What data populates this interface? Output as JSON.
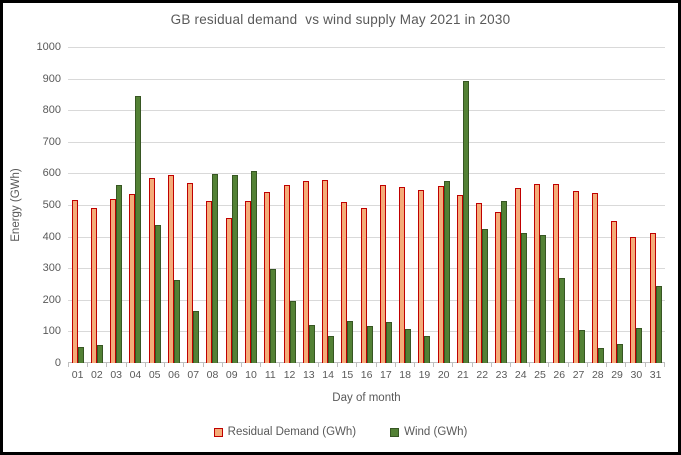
{
  "chart_data": {
    "type": "bar",
    "title": "GB residual demand  vs wind supply May 2021 in 2030",
    "xlabel": "Day of month",
    "ylabel": "Energy (GWh)",
    "ylim": [
      0,
      1000
    ],
    "ytick_interval": 100,
    "grid": true,
    "legend_position": "bottom",
    "colors": {
      "residual_fill": "#F4AC79",
      "residual_border": "#C00000",
      "wind_fill": "#538135",
      "wind_border": "#375623",
      "gridline": "#D9D9D9",
      "axis_line": "#BFBFBF",
      "text": "#595959"
    },
    "categories": [
      "01",
      "02",
      "03",
      "04",
      "05",
      "06",
      "07",
      "08",
      "09",
      "10",
      "11",
      "12",
      "13",
      "14",
      "15",
      "16",
      "17",
      "18",
      "19",
      "20",
      "21",
      "22",
      "23",
      "24",
      "25",
      "26",
      "27",
      "28",
      "29",
      "30",
      "31"
    ],
    "series": [
      {
        "name": "Residual Demand (GWh)",
        "values": [
          515,
          490,
          520,
          536,
          585,
          595,
          570,
          513,
          460,
          513,
          540,
          562,
          575,
          578,
          510,
          490,
          563,
          556,
          548,
          560,
          532,
          505,
          478,
          555,
          568,
          568,
          543,
          537,
          450,
          400,
          412
        ]
      },
      {
        "name": "Wind (GWh)",
        "values": [
          52,
          57,
          562,
          845,
          437,
          262,
          165,
          598,
          595,
          608,
          298,
          195,
          120,
          87,
          133,
          117,
          130,
          107,
          84,
          577,
          892,
          425,
          512,
          410,
          405,
          268,
          103,
          47,
          60,
          110,
          245
        ]
      }
    ]
  }
}
